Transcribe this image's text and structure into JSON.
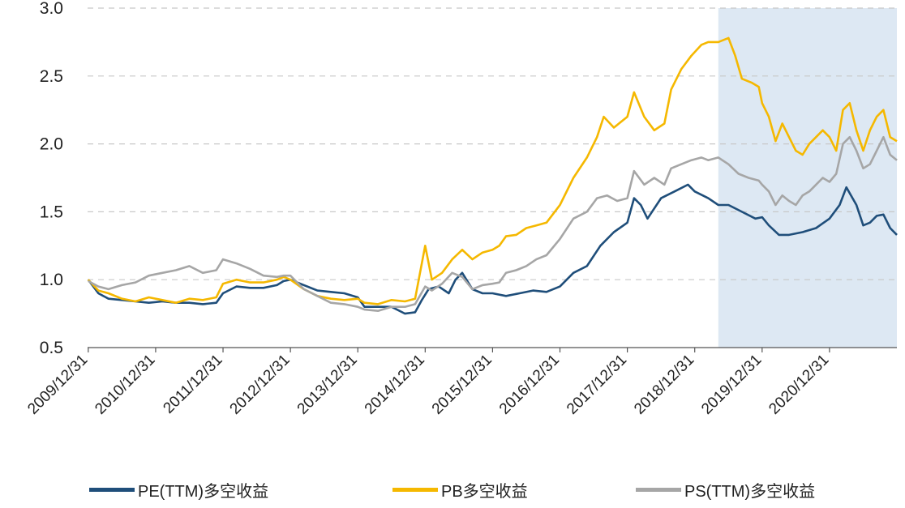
{
  "chart_data": {
    "type": "line",
    "title": "",
    "xlabel": "",
    "ylabel": "",
    "ylim": [
      0.5,
      3.0
    ],
    "yticks": [
      "0.5",
      "1.0",
      "1.5",
      "2.0",
      "2.5",
      "3.0"
    ],
    "ytick_values": [
      0.5,
      1.0,
      1.5,
      2.0,
      2.5,
      3.0
    ],
    "xlim": [
      2009.99,
      2022.0
    ],
    "xticks": [
      "2009/12/31",
      "2010/12/31",
      "2011/12/31",
      "2012/12/31",
      "2013/12/31",
      "2014/12/31",
      "2015/12/31",
      "2016/12/31",
      "2017/12/31",
      "2018/12/31",
      "2019/12/31",
      "2020/12/31"
    ],
    "xtick_values": [
      2010.0,
      2011.0,
      2012.0,
      2013.0,
      2014.0,
      2015.0,
      2016.0,
      2017.0,
      2018.0,
      2019.0,
      2020.0,
      2021.0
    ],
    "grid": "horizontal dashed",
    "legend_position": "bottom",
    "shaded_region": {
      "from": 2019.35,
      "to": 2022.0,
      "color": "#dde8f3"
    },
    "series": [
      {
        "name": "PE(TTM)多空收益",
        "color": "#1f4e7a",
        "points": [
          [
            2010.0,
            1.0
          ],
          [
            2010.15,
            0.9
          ],
          [
            2010.3,
            0.86
          ],
          [
            2010.5,
            0.85
          ],
          [
            2010.7,
            0.84
          ],
          [
            2010.9,
            0.83
          ],
          [
            2011.1,
            0.84
          ],
          [
            2011.3,
            0.83
          ],
          [
            2011.5,
            0.83
          ],
          [
            2011.7,
            0.82
          ],
          [
            2011.9,
            0.83
          ],
          [
            2012.0,
            0.9
          ],
          [
            2012.2,
            0.95
          ],
          [
            2012.4,
            0.94
          ],
          [
            2012.6,
            0.94
          ],
          [
            2012.8,
            0.96
          ],
          [
            2012.9,
            0.99
          ],
          [
            2013.0,
            1.0
          ],
          [
            2013.2,
            0.96
          ],
          [
            2013.4,
            0.92
          ],
          [
            2013.6,
            0.91
          ],
          [
            2013.8,
            0.9
          ],
          [
            2014.0,
            0.87
          ],
          [
            2014.1,
            0.8
          ],
          [
            2014.3,
            0.8
          ],
          [
            2014.5,
            0.8
          ],
          [
            2014.7,
            0.75
          ],
          [
            2014.85,
            0.76
          ],
          [
            2014.95,
            0.85
          ],
          [
            2015.05,
            0.93
          ],
          [
            2015.2,
            0.95
          ],
          [
            2015.35,
            0.9
          ],
          [
            2015.45,
            1.0
          ],
          [
            2015.55,
            1.05
          ],
          [
            2015.7,
            0.93
          ],
          [
            2015.85,
            0.9
          ],
          [
            2016.0,
            0.9
          ],
          [
            2016.2,
            0.88
          ],
          [
            2016.4,
            0.9
          ],
          [
            2016.6,
            0.92
          ],
          [
            2016.8,
            0.91
          ],
          [
            2017.0,
            0.95
          ],
          [
            2017.2,
            1.05
          ],
          [
            2017.4,
            1.1
          ],
          [
            2017.6,
            1.25
          ],
          [
            2017.8,
            1.35
          ],
          [
            2018.0,
            1.42
          ],
          [
            2018.1,
            1.6
          ],
          [
            2018.2,
            1.55
          ],
          [
            2018.3,
            1.45
          ],
          [
            2018.5,
            1.6
          ],
          [
            2018.7,
            1.65
          ],
          [
            2018.9,
            1.7
          ],
          [
            2019.0,
            1.65
          ],
          [
            2019.2,
            1.6
          ],
          [
            2019.35,
            1.55
          ],
          [
            2019.5,
            1.55
          ],
          [
            2019.7,
            1.5
          ],
          [
            2019.9,
            1.45
          ],
          [
            2020.0,
            1.46
          ],
          [
            2020.1,
            1.4
          ],
          [
            2020.25,
            1.33
          ],
          [
            2020.4,
            1.33
          ],
          [
            2020.6,
            1.35
          ],
          [
            2020.8,
            1.38
          ],
          [
            2021.0,
            1.45
          ],
          [
            2021.15,
            1.55
          ],
          [
            2021.25,
            1.68
          ],
          [
            2021.4,
            1.55
          ],
          [
            2021.5,
            1.4
          ],
          [
            2021.6,
            1.42
          ],
          [
            2021.7,
            1.47
          ],
          [
            2021.8,
            1.48
          ],
          [
            2021.9,
            1.38
          ],
          [
            2022.0,
            1.33
          ]
        ]
      },
      {
        "name": "PB多空收益",
        "color": "#f5b800",
        "points": [
          [
            2010.0,
            1.0
          ],
          [
            2010.15,
            0.92
          ],
          [
            2010.3,
            0.9
          ],
          [
            2010.5,
            0.86
          ],
          [
            2010.7,
            0.84
          ],
          [
            2010.9,
            0.87
          ],
          [
            2011.1,
            0.85
          ],
          [
            2011.3,
            0.83
          ],
          [
            2011.5,
            0.86
          ],
          [
            2011.7,
            0.85
          ],
          [
            2011.9,
            0.87
          ],
          [
            2012.0,
            0.97
          ],
          [
            2012.2,
            1.0
          ],
          [
            2012.4,
            0.98
          ],
          [
            2012.6,
            0.98
          ],
          [
            2012.8,
            1.0
          ],
          [
            2012.9,
            1.02
          ],
          [
            2013.0,
            1.0
          ],
          [
            2013.2,
            0.93
          ],
          [
            2013.4,
            0.88
          ],
          [
            2013.6,
            0.86
          ],
          [
            2013.8,
            0.85
          ],
          [
            2014.0,
            0.86
          ],
          [
            2014.1,
            0.83
          ],
          [
            2014.3,
            0.82
          ],
          [
            2014.5,
            0.85
          ],
          [
            2014.7,
            0.84
          ],
          [
            2014.85,
            0.86
          ],
          [
            2015.0,
            1.25
          ],
          [
            2015.1,
            1.0
          ],
          [
            2015.25,
            1.05
          ],
          [
            2015.4,
            1.15
          ],
          [
            2015.55,
            1.22
          ],
          [
            2015.7,
            1.15
          ],
          [
            2015.85,
            1.2
          ],
          [
            2016.0,
            1.22
          ],
          [
            2016.1,
            1.25
          ],
          [
            2016.2,
            1.32
          ],
          [
            2016.35,
            1.33
          ],
          [
            2016.5,
            1.38
          ],
          [
            2016.65,
            1.4
          ],
          [
            2016.8,
            1.42
          ],
          [
            2017.0,
            1.55
          ],
          [
            2017.2,
            1.75
          ],
          [
            2017.4,
            1.9
          ],
          [
            2017.55,
            2.05
          ],
          [
            2017.65,
            2.2
          ],
          [
            2017.8,
            2.12
          ],
          [
            2018.0,
            2.2
          ],
          [
            2018.1,
            2.38
          ],
          [
            2018.25,
            2.2
          ],
          [
            2018.4,
            2.1
          ],
          [
            2018.55,
            2.15
          ],
          [
            2018.65,
            2.4
          ],
          [
            2018.8,
            2.55
          ],
          [
            2018.95,
            2.65
          ],
          [
            2019.1,
            2.73
          ],
          [
            2019.2,
            2.75
          ],
          [
            2019.35,
            2.75
          ],
          [
            2019.5,
            2.78
          ],
          [
            2019.6,
            2.65
          ],
          [
            2019.7,
            2.48
          ],
          [
            2019.85,
            2.45
          ],
          [
            2019.95,
            2.42
          ],
          [
            2020.0,
            2.3
          ],
          [
            2020.1,
            2.2
          ],
          [
            2020.2,
            2.02
          ],
          [
            2020.3,
            2.15
          ],
          [
            2020.4,
            2.05
          ],
          [
            2020.5,
            1.95
          ],
          [
            2020.6,
            1.92
          ],
          [
            2020.7,
            2.0
          ],
          [
            2020.8,
            2.05
          ],
          [
            2020.9,
            2.1
          ],
          [
            2021.0,
            2.05
          ],
          [
            2021.1,
            1.95
          ],
          [
            2021.2,
            2.25
          ],
          [
            2021.3,
            2.3
          ],
          [
            2021.4,
            2.1
          ],
          [
            2021.5,
            1.95
          ],
          [
            2021.6,
            2.1
          ],
          [
            2021.7,
            2.2
          ],
          [
            2021.8,
            2.25
          ],
          [
            2021.9,
            2.05
          ],
          [
            2022.0,
            2.02
          ]
        ]
      },
      {
        "name": "PS(TTM)多空收益",
        "color": "#a6a6a6",
        "points": [
          [
            2010.0,
            0.99
          ],
          [
            2010.15,
            0.95
          ],
          [
            2010.3,
            0.93
          ],
          [
            2010.5,
            0.96
          ],
          [
            2010.7,
            0.98
          ],
          [
            2010.9,
            1.03
          ],
          [
            2011.1,
            1.05
          ],
          [
            2011.3,
            1.07
          ],
          [
            2011.5,
            1.1
          ],
          [
            2011.7,
            1.05
          ],
          [
            2011.9,
            1.07
          ],
          [
            2012.0,
            1.15
          ],
          [
            2012.2,
            1.12
          ],
          [
            2012.4,
            1.08
          ],
          [
            2012.6,
            1.03
          ],
          [
            2012.8,
            1.02
          ],
          [
            2012.9,
            1.03
          ],
          [
            2013.0,
            1.03
          ],
          [
            2013.2,
            0.93
          ],
          [
            2013.4,
            0.88
          ],
          [
            2013.6,
            0.83
          ],
          [
            2013.8,
            0.82
          ],
          [
            2014.0,
            0.8
          ],
          [
            2014.1,
            0.78
          ],
          [
            2014.3,
            0.77
          ],
          [
            2014.5,
            0.8
          ],
          [
            2014.7,
            0.8
          ],
          [
            2014.85,
            0.82
          ],
          [
            2015.0,
            0.95
          ],
          [
            2015.1,
            0.92
          ],
          [
            2015.25,
            0.97
          ],
          [
            2015.4,
            1.05
          ],
          [
            2015.55,
            1.02
          ],
          [
            2015.7,
            0.93
          ],
          [
            2015.85,
            0.96
          ],
          [
            2016.0,
            0.97
          ],
          [
            2016.1,
            0.98
          ],
          [
            2016.2,
            1.05
          ],
          [
            2016.35,
            1.07
          ],
          [
            2016.5,
            1.1
          ],
          [
            2016.65,
            1.15
          ],
          [
            2016.8,
            1.18
          ],
          [
            2017.0,
            1.3
          ],
          [
            2017.2,
            1.45
          ],
          [
            2017.4,
            1.5
          ],
          [
            2017.55,
            1.6
          ],
          [
            2017.7,
            1.62
          ],
          [
            2017.85,
            1.58
          ],
          [
            2018.0,
            1.6
          ],
          [
            2018.1,
            1.8
          ],
          [
            2018.25,
            1.7
          ],
          [
            2018.4,
            1.75
          ],
          [
            2018.55,
            1.7
          ],
          [
            2018.65,
            1.82
          ],
          [
            2018.8,
            1.85
          ],
          [
            2018.95,
            1.88
          ],
          [
            2019.1,
            1.9
          ],
          [
            2019.2,
            1.88
          ],
          [
            2019.35,
            1.9
          ],
          [
            2019.5,
            1.85
          ],
          [
            2019.65,
            1.78
          ],
          [
            2019.8,
            1.75
          ],
          [
            2019.95,
            1.73
          ],
          [
            2020.0,
            1.7
          ],
          [
            2020.1,
            1.65
          ],
          [
            2020.2,
            1.55
          ],
          [
            2020.3,
            1.62
          ],
          [
            2020.4,
            1.58
          ],
          [
            2020.5,
            1.55
          ],
          [
            2020.6,
            1.62
          ],
          [
            2020.7,
            1.65
          ],
          [
            2020.8,
            1.7
          ],
          [
            2020.9,
            1.75
          ],
          [
            2021.0,
            1.72
          ],
          [
            2021.1,
            1.78
          ],
          [
            2021.2,
            2.0
          ],
          [
            2021.3,
            2.05
          ],
          [
            2021.4,
            1.95
          ],
          [
            2021.5,
            1.82
          ],
          [
            2021.6,
            1.85
          ],
          [
            2021.7,
            1.95
          ],
          [
            2021.8,
            2.05
          ],
          [
            2021.9,
            1.92
          ],
          [
            2022.0,
            1.88
          ]
        ]
      }
    ]
  }
}
